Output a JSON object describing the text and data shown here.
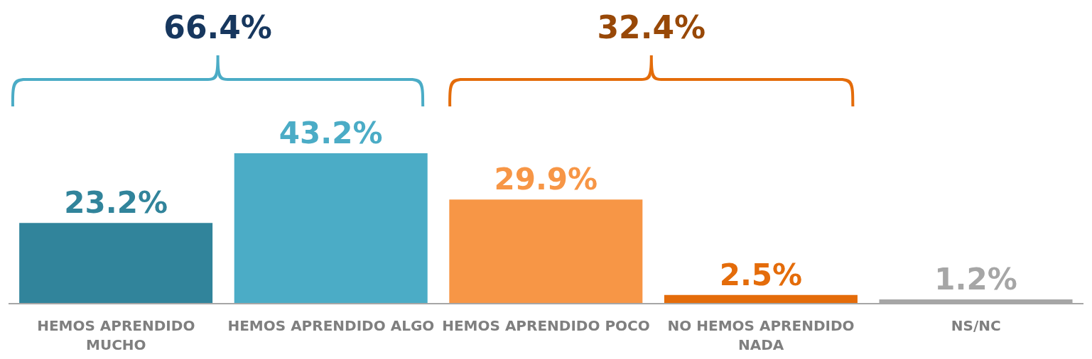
{
  "chart_data": {
    "type": "bar",
    "categories": [
      "HEMOS APRENDIDO MUCHO",
      "HEMOS APRENDIDO ALGO",
      "HEMOS APRENDIDO POCO",
      "NO HEMOS APRENDIDO NADA",
      "NS/NC"
    ],
    "values": [
      23.2,
      43.2,
      29.9,
      2.5,
      1.2
    ],
    "colors": [
      "#31849b",
      "#4bacc6",
      "#f79646",
      "#e46c0a",
      "#a6a6a6"
    ],
    "value_labels": [
      "23.2%",
      "43.2%",
      "29.9%",
      "2.5%",
      "1.2%"
    ],
    "tick_labels": "x",
    "grid": false,
    "legend": false,
    "annotations": [
      "66.4%",
      "32.4%"
    ]
  }
}
